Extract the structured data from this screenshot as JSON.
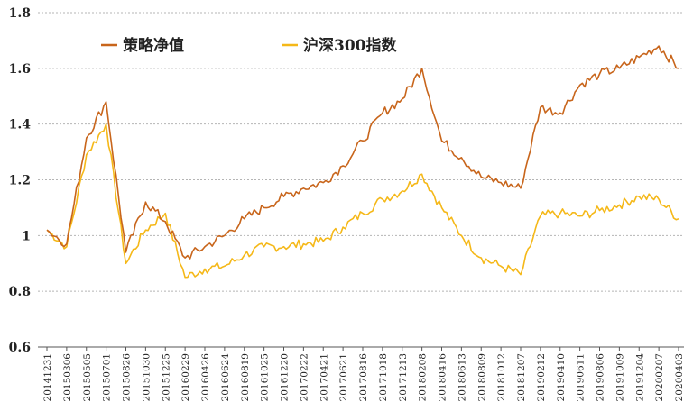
{
  "chart_data": {
    "type": "line",
    "title": "",
    "xlabel": "",
    "ylabel": "",
    "ylim": [
      0.6,
      1.8
    ],
    "yticks": [
      "0.6",
      "0.8",
      "1",
      "1.2",
      "1.4",
      "1.6",
      "1.8"
    ],
    "ytick_values": [
      0.6,
      0.8,
      1.0,
      1.2,
      1.4,
      1.6,
      1.8
    ],
    "grid": true,
    "legend_position": "top-left",
    "categories": [
      "20141231",
      "20150306",
      "20150505",
      "20150701",
      "20150826",
      "20151030",
      "20151225",
      "20160229",
      "20160426",
      "20160624",
      "20160819",
      "20161025",
      "20161220",
      "20170222",
      "20170421",
      "20170621",
      "20170816",
      "20171018",
      "20171213",
      "20180208",
      "20180416",
      "20180613",
      "20180809",
      "20181012",
      "20181207",
      "20190212",
      "20190410",
      "20190611",
      "20190806",
      "20191009",
      "20191204",
      "20200207",
      "20200403"
    ],
    "series": [
      {
        "name": "策略净值",
        "color": "#c8651b",
        "values": [
          1.02,
          0.97,
          1.35,
          1.48,
          0.94,
          1.12,
          1.05,
          0.92,
          0.96,
          1.0,
          1.06,
          1.1,
          1.14,
          1.17,
          1.19,
          1.25,
          1.34,
          1.44,
          1.49,
          1.6,
          1.34,
          1.28,
          1.21,
          1.19,
          1.17,
          1.46,
          1.44,
          1.54,
          1.58,
          1.6,
          1.64,
          1.68,
          1.6
        ]
      },
      {
        "name": "沪深300指数",
        "color": "#f5b818",
        "values": [
          1.02,
          0.96,
          1.29,
          1.4,
          0.9,
          1.02,
          1.08,
          0.85,
          0.88,
          0.89,
          0.93,
          0.96,
          0.96,
          0.97,
          0.98,
          1.03,
          1.08,
          1.13,
          1.16,
          1.22,
          1.1,
          1.0,
          0.92,
          0.89,
          0.86,
          1.07,
          1.08,
          1.07,
          1.09,
          1.11,
          1.14,
          1.13,
          1.06
        ]
      }
    ]
  }
}
